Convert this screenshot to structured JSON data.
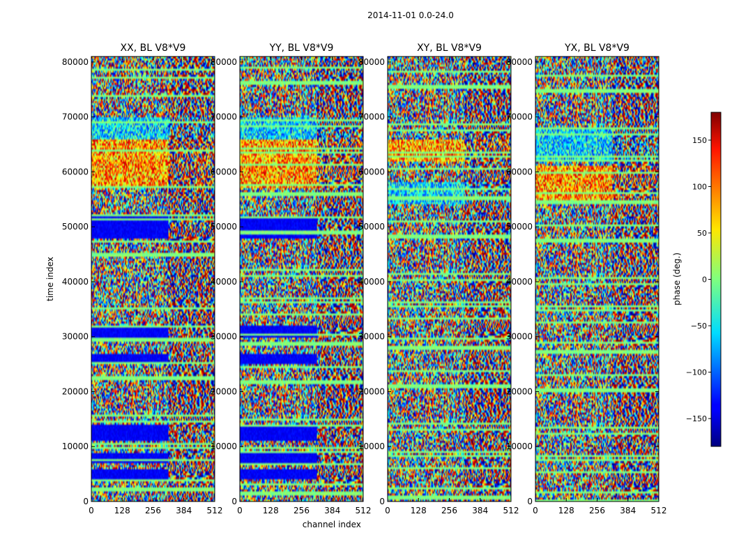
{
  "suptitle": "2014-11-01 0.0-24.0",
  "chart_data": [
    {
      "type": "heatmap",
      "title": "XX, BL V8*V9",
      "xlabel": "",
      "ylabel": "time index",
      "xlim": [
        0,
        512
      ],
      "ylim": [
        0,
        81000
      ],
      "xticks": [
        "0",
        "128",
        "256",
        "384",
        "512"
      ],
      "yticks": [
        "0",
        "10000",
        "20000",
        "30000",
        "40000",
        "50000",
        "60000",
        "70000",
        "80000"
      ],
      "value_range": [
        -180,
        180
      ],
      "fringe_start_channel": 320,
      "flag_bands": [
        [
          4000,
          6000
        ],
        [
          7000,
          9000
        ],
        [
          11000,
          14000
        ],
        [
          25000,
          27000
        ],
        [
          30000,
          32000
        ],
        [
          48000,
          52000
        ]
      ],
      "warm_band": [
        57000,
        66000
      ],
      "cool_band": [
        66000,
        70000
      ]
    },
    {
      "type": "heatmap",
      "title": "YY, BL V8*V9",
      "xlabel": "channel index",
      "ylabel": "",
      "xlim": [
        0,
        512
      ],
      "ylim": [
        0,
        81000
      ],
      "xticks": [
        "0",
        "128",
        "256",
        "384",
        "512"
      ],
      "yticks": [
        "0",
        "10000",
        "20000",
        "30000",
        "40000",
        "50000",
        "60000",
        "70000",
        "80000"
      ],
      "value_range": [
        -180,
        180
      ],
      "fringe_start_channel": 320,
      "flag_bands": [
        [
          4000,
          6000
        ],
        [
          7000,
          9000
        ],
        [
          11000,
          14000
        ],
        [
          25000,
          27000
        ],
        [
          30000,
          32000
        ],
        [
          48000,
          52000
        ]
      ],
      "warm_band": [
        57000,
        66000
      ],
      "cool_band": [
        66000,
        70000
      ]
    },
    {
      "type": "heatmap",
      "title": "XY, BL V8*V9",
      "xlabel": "",
      "ylabel": "",
      "xlim": [
        0,
        512
      ],
      "ylim": [
        0,
        81000
      ],
      "xticks": [
        "0",
        "128",
        "256",
        "384",
        "512"
      ],
      "yticks": [
        "0",
        "10000",
        "20000",
        "30000",
        "40000",
        "50000",
        "60000",
        "70000",
        "80000"
      ],
      "value_range": [
        -180,
        180
      ],
      "fringe_start_channel": 320,
      "flag_bands": [],
      "warm_band": [
        62000,
        66000
      ],
      "cool_band": [
        54000,
        58000
      ]
    },
    {
      "type": "heatmap",
      "title": "YX, BL V8*V9",
      "xlabel": "",
      "ylabel": "",
      "xlim": [
        0,
        512
      ],
      "ylim": [
        0,
        81000
      ],
      "xticks": [
        "0",
        "128",
        "256",
        "384",
        "512"
      ],
      "yticks": [
        "0",
        "10000",
        "20000",
        "30000",
        "40000",
        "50000",
        "60000",
        "70000",
        "80000"
      ],
      "value_range": [
        -180,
        180
      ],
      "fringe_start_channel": 320,
      "flag_bands": [],
      "warm_band": [
        55000,
        61000
      ],
      "cool_band": [
        62000,
        68000
      ]
    }
  ],
  "colorbar": {
    "label": "phase (deg.)",
    "range": [
      -180,
      180
    ],
    "ticks": [
      "150",
      "100",
      "50",
      "0",
      "−50",
      "−100",
      "−150"
    ],
    "colormap": "jet"
  },
  "colors": {
    "jet_low": "#00007f",
    "jet_mid": "#7fff7f",
    "jet_high": "#7f0000"
  }
}
